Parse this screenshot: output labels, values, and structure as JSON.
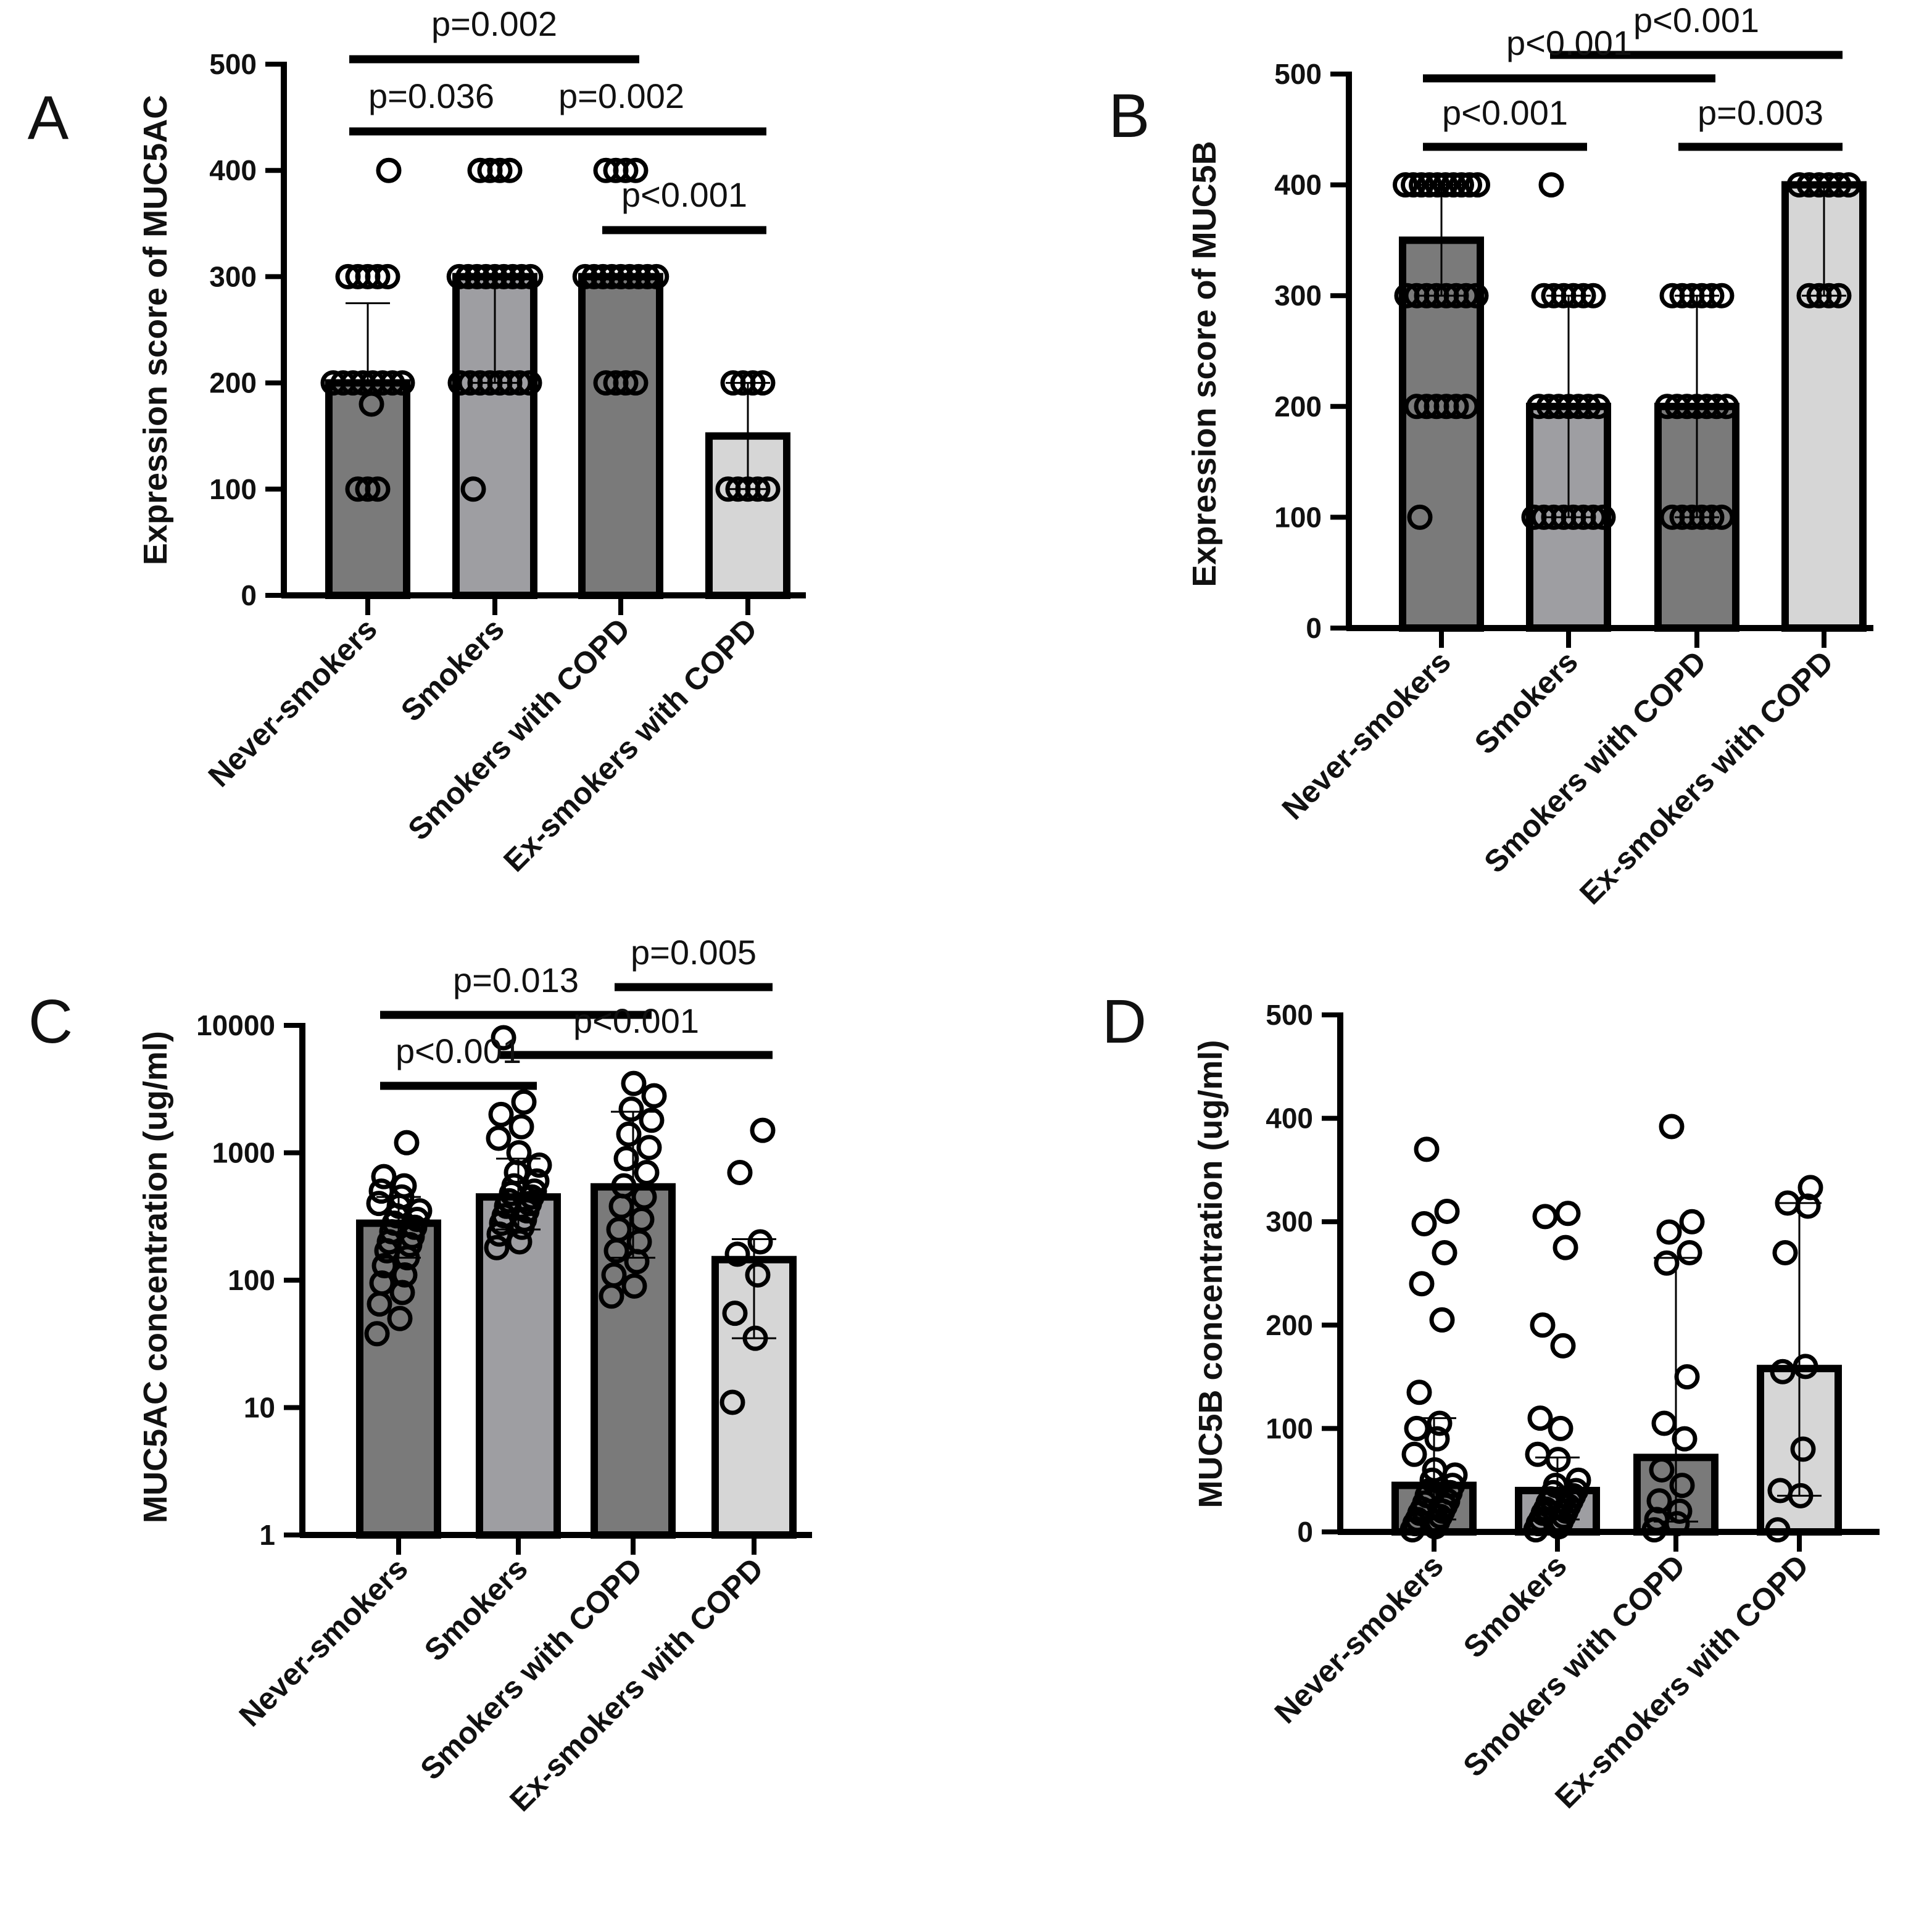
{
  "chart_data": [
    {
      "panel": "A",
      "type": "bar",
      "scale": "linear",
      "ylabel": "Expression score of MUC5AC",
      "ylim": [
        0,
        500
      ],
      "yticks": [
        "0",
        "100",
        "200",
        "300",
        "400",
        "500"
      ],
      "categories": [
        "Never-smokers",
        "Smokers",
        "Smokers with COPD",
        "Ex-smokers with COPD"
      ],
      "bar_colors": [
        "#7a7a7a",
        "#9e9ea2",
        "#7a7a7a",
        "#d6d6d6"
      ],
      "values": [
        200,
        300,
        300,
        150
      ],
      "error_upper": [
        275,
        300,
        300,
        200
      ],
      "error_lower": [
        200,
        200,
        300,
        100
      ],
      "points": [
        [
          100,
          100,
          100,
          180,
          200,
          200,
          200,
          200,
          200,
          200,
          200,
          200,
          300,
          300,
          300,
          300,
          300,
          400
        ],
        [
          100,
          200,
          200,
          200,
          200,
          200,
          200,
          200,
          200,
          300,
          300,
          300,
          300,
          300,
          300,
          300,
          300,
          300,
          400,
          400,
          400,
          400
        ],
        [
          200,
          200,
          200,
          200,
          300,
          300,
          300,
          300,
          300,
          300,
          300,
          300,
          300,
          400,
          400,
          400,
          400
        ],
        [
          100,
          100,
          100,
          100,
          100,
          200,
          200,
          200,
          200
        ]
      ],
      "significance": [
        {
          "from": 0,
          "to": 2,
          "label": "p=0.002"
        },
        {
          "from": 0,
          "to": 1,
          "label": "p=0.036"
        },
        {
          "from": 1,
          "to": 3,
          "label": "p=0.002"
        },
        {
          "from": 2,
          "to": 3,
          "label": "p<0.001"
        }
      ]
    },
    {
      "panel": "B",
      "type": "bar",
      "scale": "linear",
      "ylabel": "Expression score of MUC5B",
      "ylim": [
        0,
        500
      ],
      "yticks": [
        "0",
        "100",
        "200",
        "300",
        "400",
        "500"
      ],
      "categories": [
        "Never-smokers",
        "Smokers",
        "Smokers with COPD",
        "Ex-smokers with COPD"
      ],
      "bar_colors": [
        "#7a7a7a",
        "#9e9ea2",
        "#7a7a7a",
        "#d6d6d6"
      ],
      "values": [
        350,
        200,
        200,
        400
      ],
      "error_upper": [
        400,
        300,
        300,
        400
      ],
      "error_lower": [
        300,
        100,
        100,
        300
      ],
      "points": [
        [
          100,
          200,
          200,
          200,
          200,
          200,
          200,
          300,
          300,
          300,
          300,
          300,
          300,
          300,
          300,
          400,
          400,
          400,
          400,
          400,
          400,
          400,
          400,
          400,
          400
        ],
        [
          100,
          100,
          100,
          100,
          100,
          100,
          100,
          100,
          200,
          200,
          200,
          200,
          200,
          200,
          200,
          300,
          300,
          300,
          300,
          300,
          300,
          400
        ],
        [
          100,
          100,
          100,
          100,
          100,
          100,
          200,
          200,
          200,
          200,
          200,
          200,
          200,
          300,
          300,
          300,
          300,
          300,
          300
        ],
        [
          300,
          300,
          300,
          300,
          400,
          400,
          400,
          400,
          400,
          400
        ]
      ],
      "significance": [
        {
          "from": 1,
          "to": 3,
          "label": "p<0.001"
        },
        {
          "from": 0,
          "to": 2,
          "label": "p<0.001"
        },
        {
          "from": 0,
          "to": 1,
          "label": "p<0.001"
        },
        {
          "from": 2,
          "to": 3,
          "label": "p=0.003"
        }
      ]
    },
    {
      "panel": "C",
      "type": "bar",
      "scale": "log",
      "ylabel": "MUC5AC concentration (ug/ml)",
      "ylim": [
        1,
        10000
      ],
      "yticks": [
        "1",
        "10",
        "100",
        "1000",
        "10000"
      ],
      "categories": [
        "Never-smokers",
        "Smokers",
        "Smokers with COPD",
        "Ex-smokers with COPD"
      ],
      "bar_colors": [
        "#7a7a7a",
        "#9e9ea2",
        "#7a7a7a",
        "#d6d6d6"
      ],
      "values": [
        280,
        450,
        540,
        145
      ],
      "error_upper": [
        450,
        900,
        2100,
        210
      ],
      "error_lower": [
        150,
        250,
        150,
        35
      ],
      "points": [
        [
          38,
          50,
          65,
          80,
          95,
          110,
          130,
          150,
          170,
          190,
          200,
          220,
          240,
          260,
          280,
          300,
          320,
          350,
          380,
          400,
          450,
          500,
          550,
          650,
          1200
        ],
        [
          180,
          200,
          230,
          260,
          280,
          300,
          320,
          350,
          380,
          400,
          420,
          450,
          480,
          500,
          550,
          600,
          700,
          800,
          1000,
          1300,
          1600,
          2000,
          2500,
          8000
        ],
        [
          75,
          90,
          110,
          140,
          170,
          200,
          250,
          300,
          380,
          450,
          550,
          700,
          900,
          1100,
          1400,
          1800,
          2200,
          2800,
          3500
        ],
        [
          11,
          35,
          55,
          110,
          160,
          200,
          700,
          1500
        ]
      ],
      "significance": [
        {
          "from": 2,
          "to": 3,
          "label": "p=0.005"
        },
        {
          "from": 0,
          "to": 2,
          "label": "p=0.013"
        },
        {
          "from": 1,
          "to": 3,
          "label": "p<0.001"
        },
        {
          "from": 0,
          "to": 1,
          "label": "p<0.001"
        }
      ]
    },
    {
      "panel": "D",
      "type": "bar",
      "scale": "linear",
      "ylabel": "MUC5B concentration (ug/ml)",
      "ylim": [
        0,
        500
      ],
      "yticks": [
        "0",
        "100",
        "200",
        "300",
        "400",
        "500"
      ],
      "categories": [
        "Never-smokers",
        "Smokers",
        "Smokers with COPD",
        "Ex-smokers with COPD"
      ],
      "bar_colors": [
        "#7a7a7a",
        "#9e9ea2",
        "#7a7a7a",
        "#d6d6d6"
      ],
      "values": [
        45,
        40,
        72,
        158
      ],
      "error_upper": [
        110,
        72,
        265,
        318
      ],
      "error_lower": [
        12,
        12,
        10,
        35
      ],
      "points": [
        [
          2,
          5,
          8,
          10,
          12,
          15,
          18,
          20,
          22,
          25,
          28,
          30,
          35,
          38,
          40,
          45,
          50,
          55,
          60,
          75,
          90,
          100,
          105,
          135,
          205,
          240,
          270,
          298,
          310,
          370
        ],
        [
          2,
          5,
          8,
          10,
          12,
          15,
          18,
          20,
          22,
          25,
          28,
          30,
          32,
          35,
          38,
          40,
          45,
          50,
          70,
          75,
          100,
          110,
          180,
          200,
          275,
          305,
          308
        ],
        [
          2,
          8,
          12,
          20,
          30,
          45,
          60,
          90,
          105,
          150,
          260,
          270,
          290,
          300,
          392
        ],
        [
          2,
          35,
          40,
          80,
          155,
          160,
          270,
          315,
          318,
          333
        ]
      ],
      "significance": []
    }
  ]
}
